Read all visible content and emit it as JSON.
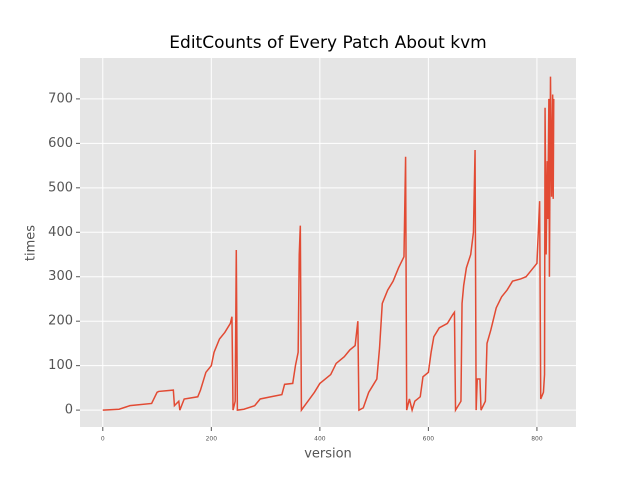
{
  "chart_data": {
    "type": "line",
    "title": "EditCounts of Every Patch About kvm",
    "x_label": "version",
    "y_label": "times",
    "x": [
      0,
      30,
      50,
      90,
      100,
      103,
      130,
      132,
      140,
      142,
      150,
      175,
      180,
      190,
      200,
      205,
      215,
      225,
      235,
      238,
      240,
      244,
      246,
      248,
      260,
      280,
      290,
      310,
      330,
      335,
      350,
      355,
      360,
      362,
      364,
      366,
      375,
      390,
      400,
      420,
      430,
      445,
      455,
      465,
      470,
      472,
      480,
      490,
      500,
      505,
      510,
      515,
      525,
      535,
      545,
      555,
      558,
      560,
      565,
      570,
      575,
      585,
      590,
      600,
      605,
      610,
      620,
      635,
      645,
      648,
      650,
      660,
      662,
      665,
      670,
      678,
      683,
      686,
      688,
      690,
      695,
      697,
      705,
      708,
      715,
      725,
      735,
      745,
      755,
      770,
      780,
      790,
      800,
      805,
      807,
      812,
      814,
      815,
      817,
      819,
      820,
      822,
      823,
      825,
      827,
      829,
      830,
      831
    ],
    "series": [
      {
        "name": "kvm",
        "color": "#E24A33",
        "values": [
          0,
          2,
          10,
          15,
          40,
          42,
          45,
          10,
          20,
          0,
          25,
          30,
          45,
          85,
          100,
          130,
          160,
          175,
          195,
          210,
          0,
          20,
          360,
          0,
          2,
          10,
          25,
          30,
          35,
          58,
          60,
          100,
          130,
          350,
          415,
          0,
          15,
          40,
          60,
          80,
          105,
          120,
          135,
          145,
          200,
          0,
          5,
          40,
          60,
          70,
          140,
          240,
          270,
          290,
          320,
          345,
          570,
          0,
          25,
          0,
          20,
          30,
          75,
          85,
          130,
          165,
          185,
          195,
          215,
          220,
          0,
          20,
          240,
          280,
          320,
          350,
          400,
          585,
          0,
          70,
          70,
          0,
          20,
          150,
          180,
          230,
          255,
          270,
          290,
          295,
          300,
          315,
          330,
          470,
          25,
          40,
          80,
          680,
          350,
          560,
          430,
          700,
          300,
          750,
          480,
          710,
          475,
          700
        ]
      }
    ],
    "xlim": [
      -42,
      872
    ],
    "ylim": [
      -38,
      792
    ],
    "xticks": [
      0,
      200,
      400,
      600,
      800
    ],
    "yticks": [
      0,
      100,
      200,
      300,
      400,
      500,
      600,
      700
    ],
    "grid": true
  }
}
